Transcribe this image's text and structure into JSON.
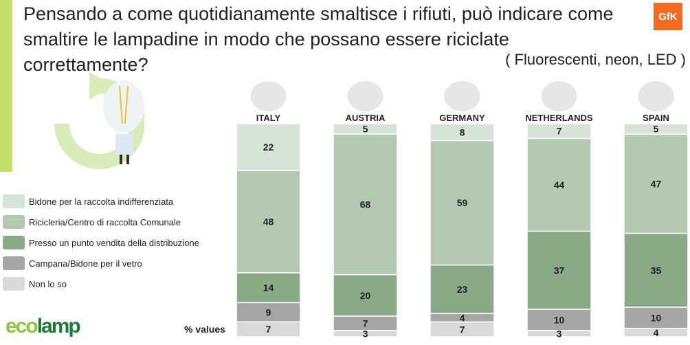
{
  "header": {
    "title": "Pensando a come quotidianamente smaltisce i rifiuti, può indicare come smaltire le lampadine in modo che possano essere riciclate correttamente?",
    "subtitle": "( Fluorescenti, neon, LED )",
    "brand_logo": "GfK"
  },
  "footer": {
    "logo": "ecolamp",
    "values_label": "% values"
  },
  "chart_data": {
    "type": "bar",
    "stacked": true,
    "orientation": "vertical",
    "categories": [
      "ITALY",
      "AUSTRIA",
      "GERMANY",
      "NETHERLANDS",
      "SPAIN"
    ],
    "series": [
      {
        "name": "Bidone per la raccolta indifferenziata",
        "color": "#d6e3d7",
        "values": [
          22,
          5,
          8,
          7,
          5
        ]
      },
      {
        "name": "Ricicleria/Centro di raccolta Comunale",
        "color": "#b3c9b1",
        "values": [
          48,
          68,
          59,
          44,
          47
        ]
      },
      {
        "name": "Presso un punto vendita della distribuzione",
        "color": "#89a987",
        "values": [
          14,
          20,
          23,
          37,
          35
        ]
      },
      {
        "name": "Campana/Bidone per il vetro",
        "color": "#a6a6a6",
        "values": [
          9,
          7,
          4,
          10,
          10
        ]
      },
      {
        "name": "Non lo so",
        "color": "#d9d9d9",
        "values": [
          7,
          3,
          7,
          3,
          4
        ]
      }
    ],
    "ylabel": "% values",
    "legend": "left"
  }
}
